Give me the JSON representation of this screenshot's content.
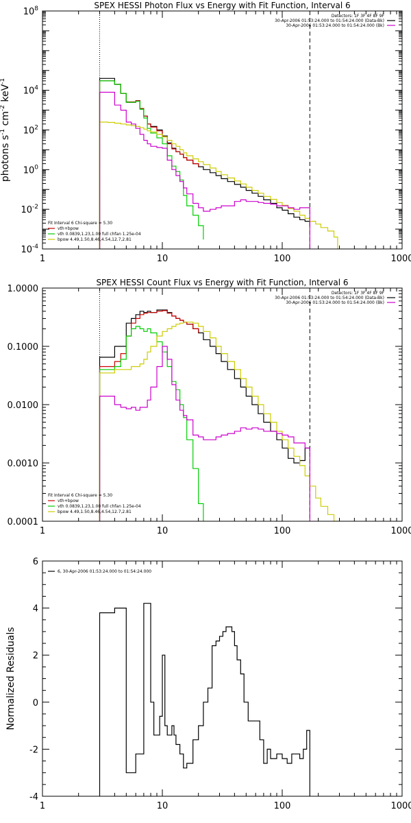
{
  "colors": {
    "total": "#000000",
    "vth": "#00cc00",
    "bpow": "#cccc00",
    "bk": "#cc00cc",
    "sum": "#cc0000",
    "bar": "#cc0000"
  },
  "chart_data": [
    {
      "id": "photon",
      "type": "line",
      "title": "SPEX HESSI Photon Flux vs Energy with Fit Function, Interval 6",
      "ylabel_tex": {
        "main": "photons s",
        "exp1": "-1",
        "mid1": " cm",
        "exp2": "-2",
        "mid2": " keV",
        "exp3": "-1"
      },
      "xscale": "log",
      "yscale": "log",
      "xlim": [
        1,
        1000
      ],
      "ylim": [
        0.0001,
        100000000
      ],
      "x_ticks": [
        1,
        10,
        100,
        1000
      ],
      "x_tick_labels": [
        "1",
        "10",
        "100",
        "1000"
      ],
      "y_ticks": [
        0.0001,
        0.01,
        1,
        100,
        10000,
        100000000
      ],
      "y_tick_labels": [
        {
          "base": "10",
          "exp": "-4"
        },
        {
          "base": "10",
          "exp": "-2"
        },
        {
          "base": "10",
          "exp": "0"
        },
        {
          "base": "10",
          "exp": "2"
        },
        {
          "base": "10",
          "exp": "4"
        },
        {
          "base": "10",
          "exp": "8"
        }
      ],
      "vlines": [
        {
          "x": 3,
          "style": "dotted"
        },
        {
          "x": 170,
          "style": "dashed"
        }
      ],
      "legend_right": [
        {
          "text": "Detectors: 1F 3F 4F 8F 9F",
          "color": ""
        },
        {
          "text": "30-Apr-2006 01:53:24.000 to 01:54:24.000 (Data-Bk)",
          "color": "#000000"
        },
        {
          "text": "30-Apr-2006 01:53:24.000 to 01:54:24.000 (Bk)",
          "color": "#cc00cc"
        }
      ],
      "legend_left": [
        {
          "text": "Fit Interval  6    Chi-square = 5.30",
          "color": ""
        },
        {
          "text": "vth+bpow",
          "color": "#cc0000"
        },
        {
          "text": "vth 0.0839,1.23,1.00  full chfan 1.25e-04",
          "color": "#00cc00"
        },
        {
          "text": "bpow 4.49,1.50,8.46,4.54,12.7,2.81",
          "color": "#cccc00"
        }
      ],
      "series": [
        {
          "key": "total",
          "color": "#000000",
          "x": [
            3,
            3.5,
            4,
            4.5,
            5,
            5.5,
            6,
            6.5,
            7,
            7.5,
            8,
            9,
            10,
            11,
            12,
            13,
            14,
            15,
            16,
            18,
            20,
            22,
            25,
            28,
            31,
            35,
            40,
            45,
            50,
            56,
            63,
            70,
            80,
            90,
            100,
            112,
            125,
            140,
            155,
            170
          ],
          "y": [
            40000,
            40000,
            20000,
            7000,
            2500,
            2500,
            3000,
            1200,
            500,
            200,
            150,
            100,
            50,
            22,
            12,
            8,
            6,
            4,
            3,
            2,
            1.4,
            1.0,
            0.7,
            0.5,
            0.35,
            0.25,
            0.18,
            0.13,
            0.09,
            0.065,
            0.045,
            0.03,
            0.02,
            0.012,
            0.009,
            0.006,
            0.004,
            0.003,
            0.0025,
            0.0015
          ]
        },
        {
          "key": "sum",
          "color": "#cc0000",
          "x": [
            3,
            3.5,
            4,
            4.5,
            5,
            5.5,
            6,
            6.5,
            7,
            7.5,
            8,
            9,
            10,
            11,
            12,
            13,
            14,
            15,
            16,
            18,
            20
          ],
          "y": [
            30000,
            30000,
            20000,
            7000,
            2600,
            2600,
            3000,
            1200,
            500,
            200,
            140,
            90,
            45,
            20,
            11,
            8,
            6,
            4,
            3,
            2,
            1.4
          ]
        },
        {
          "key": "vth",
          "color": "#00cc00",
          "x": [
            3,
            3.5,
            4,
            4.5,
            5,
            5.5,
            6,
            6.5,
            7,
            7.5,
            8,
            9,
            10,
            11,
            12,
            13,
            14,
            15,
            16,
            18,
            20,
            22
          ],
          "y": [
            30000,
            30000,
            20000,
            7000,
            2500,
            2500,
            2800,
            1100,
            400,
            120,
            70,
            40,
            20,
            5,
            1.5,
            0.8,
            0.3,
            0.05,
            0.015,
            0.005,
            0.0015,
            0.0003
          ]
        },
        {
          "key": "bpow",
          "color": "#cccc00",
          "x": [
            3,
            3.5,
            4,
            4.5,
            5,
            5.5,
            6,
            6.5,
            7,
            7.5,
            8,
            9,
            10,
            11,
            12,
            13,
            14,
            15,
            16,
            18,
            20,
            22,
            25,
            28,
            31,
            35,
            40,
            45,
            50,
            56,
            63,
            70,
            80,
            90,
            100,
            112,
            125,
            140,
            155,
            170,
            190,
            210,
            240,
            270,
            290
          ],
          "y": [
            250,
            240,
            220,
            200,
            180,
            165,
            150,
            130,
            110,
            90,
            80,
            60,
            45,
            30,
            20,
            15,
            10,
            7,
            5,
            3.5,
            2.5,
            1.8,
            1.2,
            0.8,
            0.55,
            0.38,
            0.27,
            0.19,
            0.13,
            0.09,
            0.065,
            0.045,
            0.032,
            0.022,
            0.016,
            0.011,
            0.008,
            0.005,
            0.0035,
            0.0025,
            0.0018,
            0.0012,
            0.0008,
            0.0004,
            0.0001
          ]
        },
        {
          "key": "bk",
          "color": "#cc00cc",
          "x": [
            3,
            3.5,
            4,
            4.5,
            5,
            5.5,
            6,
            6.5,
            7,
            7.5,
            8,
            9,
            10,
            11,
            12,
            13,
            14,
            15,
            16,
            18,
            20,
            22,
            25,
            28,
            31,
            35,
            40,
            45,
            50,
            56,
            63,
            70,
            80,
            90,
            100,
            112,
            125,
            140,
            155,
            170
          ],
          "y": [
            8000,
            8000,
            1800,
            1000,
            250,
            200,
            120,
            60,
            30,
            20,
            15,
            13,
            12,
            3,
            1,
            0.5,
            0.25,
            0.12,
            0.06,
            0.02,
            0.012,
            0.008,
            0.01,
            0.012,
            0.015,
            0.015,
            0.025,
            0.03,
            0.025,
            0.025,
            0.022,
            0.02,
            0.018,
            0.015,
            0.015,
            0.012,
            0.01,
            0.012,
            0.012,
            0.0001
          ]
        }
      ]
    },
    {
      "id": "count",
      "type": "line",
      "title": "SPEX HESSI Count Flux vs Energy with Fit Function, Interval 6",
      "xscale": "log",
      "yscale": "log",
      "xlim": [
        1,
        1000
      ],
      "ylim": [
        0.0001,
        1
      ],
      "x_ticks": [
        1,
        10,
        100,
        1000
      ],
      "x_tick_labels": [
        "1",
        "10",
        "100",
        "1000"
      ],
      "y_ticks": [
        0.0001,
        0.001,
        0.01,
        0.1,
        1
      ],
      "y_tick_labels": [
        "0.0001",
        "0.0010",
        "0.0100",
        "0.1000",
        "1.0000"
      ],
      "vlines": [
        {
          "x": 3,
          "style": "dotted"
        },
        {
          "x": 170,
          "style": "dashed"
        }
      ],
      "legend_right": [
        {
          "text": "Detectors: 1F 3F 4F 8F 9F",
          "color": ""
        },
        {
          "text": "30-Apr-2006 01:53:24.000 to 01:54:24.000 (Data-Bk)",
          "color": "#000000"
        },
        {
          "text": "30-Apr-2006 01:53:24.000 to 01:54:24.000 (Bk)",
          "color": "#cc00cc"
        }
      ],
      "legend_left": [
        {
          "text": "Fit Interval  6    Chi-square = 5.30",
          "color": ""
        },
        {
          "text": "vth+bpow",
          "color": "#cc0000"
        },
        {
          "text": "vth 0.0839,1.23,1.00  full chfan 1.25e-04",
          "color": "#00cc00"
        },
        {
          "text": "bpow 4.49,1.50,8.46,4.54,12.7,2.81",
          "color": "#cccc00"
        }
      ],
      "series": [
        {
          "key": "total",
          "color": "#000000",
          "x": [
            3,
            3.5,
            4,
            4.5,
            5,
            5.5,
            6,
            6.5,
            7,
            7.5,
            8,
            9,
            10,
            11,
            12,
            13,
            14,
            15,
            16,
            18,
            20,
            22,
            25,
            28,
            31,
            35,
            40,
            45,
            50,
            56,
            63,
            70,
            80,
            90,
            100,
            112,
            125,
            140,
            155,
            170
          ],
          "y": [
            0.065,
            0.065,
            0.1,
            0.1,
            0.25,
            0.3,
            0.35,
            0.4,
            0.38,
            0.4,
            0.38,
            0.42,
            0.42,
            0.38,
            0.33,
            0.3,
            0.28,
            0.26,
            0.24,
            0.2,
            0.17,
            0.13,
            0.1,
            0.075,
            0.055,
            0.04,
            0.028,
            0.02,
            0.014,
            0.01,
            0.007,
            0.005,
            0.0035,
            0.0025,
            0.0018,
            0.0012,
            0.001,
            0.0011,
            0.0018,
            0.0016
          ]
        },
        {
          "key": "sum",
          "color": "#cc0000",
          "x": [
            3,
            3.5,
            4,
            4.5,
            5,
            5.5,
            6,
            6.5,
            7,
            7.5,
            8,
            9,
            10,
            11,
            12,
            13,
            14,
            15,
            16,
            18,
            20
          ],
          "y": [
            0.045,
            0.045,
            0.055,
            0.075,
            0.15,
            0.25,
            0.3,
            0.35,
            0.37,
            0.38,
            0.38,
            0.4,
            0.41,
            0.37,
            0.33,
            0.3,
            0.28,
            0.26,
            0.24,
            0.2,
            0.17
          ]
        },
        {
          "key": "vth",
          "color": "#00cc00",
          "x": [
            3,
            3.5,
            4,
            4.5,
            5,
            5.5,
            6,
            6.5,
            7,
            7.5,
            8,
            9,
            10,
            11,
            12,
            13,
            14,
            15,
            16,
            18,
            20,
            22
          ],
          "y": [
            0.04,
            0.04,
            0.045,
            0.06,
            0.15,
            0.2,
            0.22,
            0.2,
            0.18,
            0.2,
            0.17,
            0.12,
            0.08,
            0.045,
            0.025,
            0.018,
            0.01,
            0.006,
            0.0025,
            0.0008,
            0.0002,
            0.0001
          ]
        },
        {
          "key": "bpow",
          "color": "#cccc00",
          "x": [
            3,
            3.5,
            4,
            4.5,
            5,
            5.5,
            6,
            6.5,
            7,
            7.5,
            8,
            9,
            10,
            11,
            12,
            13,
            14,
            15,
            16,
            18,
            20,
            22,
            25,
            28,
            31,
            35,
            40,
            45,
            50,
            56,
            63,
            70,
            80,
            90,
            100,
            112,
            125,
            140,
            155,
            170,
            190,
            210,
            240,
            270,
            290
          ],
          "y": [
            0.035,
            0.035,
            0.04,
            0.04,
            0.04,
            0.045,
            0.045,
            0.05,
            0.06,
            0.08,
            0.1,
            0.15,
            0.18,
            0.2,
            0.22,
            0.24,
            0.25,
            0.26,
            0.26,
            0.25,
            0.22,
            0.18,
            0.14,
            0.1,
            0.075,
            0.055,
            0.04,
            0.028,
            0.02,
            0.014,
            0.01,
            0.007,
            0.005,
            0.0035,
            0.0025,
            0.0018,
            0.0013,
            0.0009,
            0.0006,
            0.0004,
            0.00025,
            0.00018,
            0.00013,
            0.0001,
            0.0001
          ]
        },
        {
          "key": "bk",
          "color": "#cc00cc",
          "x": [
            3,
            3.5,
            4,
            4.5,
            5,
            5.5,
            6,
            6.5,
            7,
            7.5,
            8,
            9,
            10,
            11,
            12,
            13,
            14,
            15,
            16,
            18,
            20,
            22,
            25,
            28,
            31,
            35,
            40,
            45,
            50,
            56,
            63,
            70,
            80,
            90,
            100,
            112,
            125,
            140,
            155,
            170
          ],
          "y": [
            0.014,
            0.014,
            0.01,
            0.009,
            0.0085,
            0.009,
            0.008,
            0.009,
            0.009,
            0.012,
            0.02,
            0.045,
            0.1,
            0.06,
            0.022,
            0.012,
            0.008,
            0.0065,
            0.0055,
            0.003,
            0.0028,
            0.0025,
            0.0025,
            0.0028,
            0.003,
            0.0032,
            0.0035,
            0.004,
            0.0038,
            0.004,
            0.0038,
            0.0035,
            0.0035,
            0.0032,
            0.003,
            0.0028,
            0.0022,
            0.0022,
            0.0018,
            0.0001
          ]
        }
      ]
    },
    {
      "id": "residuals",
      "type": "line",
      "title": "",
      "ylabel": "Normalized Residuals",
      "xscale": "log",
      "yscale": "linear",
      "xlim": [
        1,
        1000
      ],
      "ylim": [
        -4,
        6
      ],
      "x_ticks": [
        1,
        10,
        100,
        1000
      ],
      "x_tick_labels": [
        "1",
        "10",
        "100",
        "1000"
      ],
      "y_ticks": [
        -4,
        -2,
        0,
        2,
        4,
        6
      ],
      "y_tick_labels": [
        "-4",
        "-2",
        "0",
        "2",
        "4",
        "6"
      ],
      "legend_left_top": [
        {
          "text": "6, 30-Apr-2006 01:53:24.000 to 01:54:24.000",
          "color": "#000000"
        }
      ],
      "series": [
        {
          "key": "residual",
          "color": "#000000",
          "x": [
            3,
            4,
            5,
            5.5,
            6,
            6.5,
            7,
            7.5,
            8,
            8.5,
            9,
            9.5,
            10,
            10.5,
            11,
            11.5,
            12,
            12.5,
            13,
            14,
            15,
            16,
            18,
            20,
            22,
            24,
            26,
            28,
            30,
            32,
            34,
            36,
            38,
            40,
            42,
            45,
            48,
            52,
            56,
            60,
            65,
            70,
            75,
            80,
            90,
            100,
            110,
            120,
            130,
            140,
            150,
            160,
            170
          ],
          "y": [
            3.8,
            4.0,
            -3.0,
            -3.0,
            -2.2,
            -2.2,
            4.2,
            4.2,
            0.0,
            -1.4,
            -1.4,
            -0.6,
            2.0,
            -1.0,
            -1.4,
            -1.4,
            -1.0,
            -1.4,
            -1.8,
            -2.2,
            -2.8,
            -2.6,
            -1.6,
            -1.0,
            0.0,
            0.6,
            2.4,
            2.6,
            2.8,
            3.0,
            3.2,
            3.2,
            3.0,
            2.4,
            1.8,
            1.2,
            0.0,
            -0.8,
            -0.8,
            -0.8,
            -1.6,
            -2.6,
            -2.0,
            -2.4,
            -2.2,
            -2.4,
            -2.6,
            -2.2,
            -2.2,
            -2.4,
            -2.0,
            -1.2,
            -4.0
          ]
        }
      ]
    }
  ]
}
